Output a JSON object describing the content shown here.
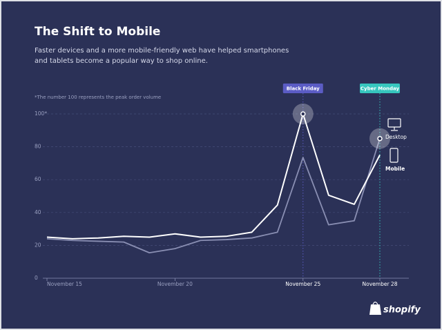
{
  "chart_data": {
    "type": "line",
    "title": "The Shift to Mobile",
    "subtitle": [
      "Faster devices and a more mobile-friendly web have helped smartphones",
      "and tablets become a popular way to shop online."
    ],
    "note": "*The number 100 represents the peak order volume",
    "categories": [
      "November 15",
      null,
      null,
      null,
      null,
      "November 20",
      null,
      null,
      null,
      null,
      "November 25",
      null,
      null,
      "November 28"
    ],
    "series": [
      {
        "name": "Desktop",
        "color": "#8a8fb3",
        "values": [
          24,
          23,
          22.5,
          22,
          15.5,
          18,
          23,
          23.5,
          24.5,
          28,
          73.5,
          32.5,
          35,
          85
        ]
      },
      {
        "name": "Mobile",
        "color": "#ffffff",
        "values": [
          25,
          24,
          24.5,
          25.5,
          25,
          27,
          25,
          25.5,
          28,
          44.5,
          100,
          50.5,
          45,
          75
        ]
      }
    ],
    "ylim": [
      0,
      100
    ],
    "yticks": [
      0,
      20,
      40,
      60,
      80,
      {
        "value": 100,
        "label": "100*"
      }
    ],
    "grid": true,
    "annotations": [
      {
        "label": "Black Friday",
        "category": "November 25",
        "color": "#5b5cc4"
      },
      {
        "label": "Cyber Monday",
        "category": "November 28",
        "color": "#36c6be"
      }
    ],
    "brand": "shopify"
  }
}
